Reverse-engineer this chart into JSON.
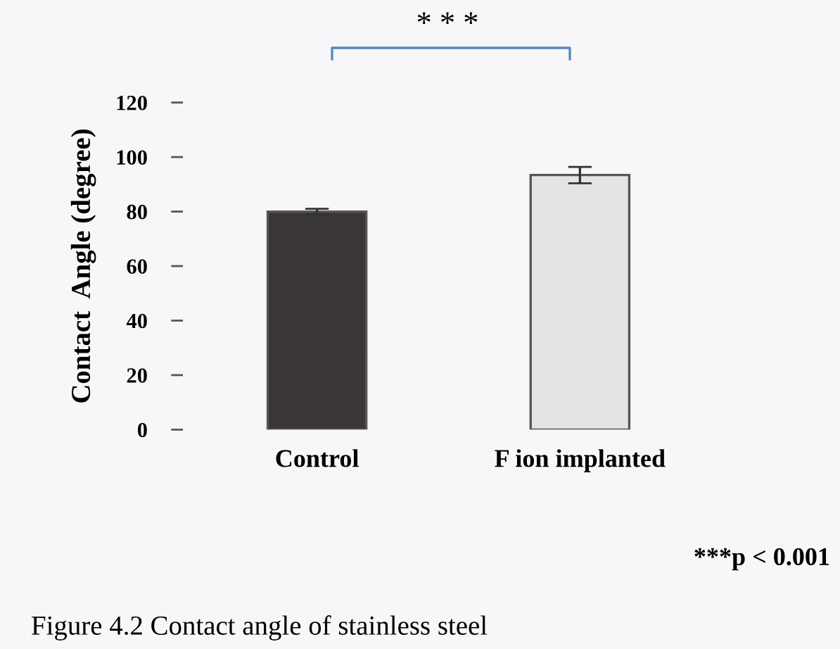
{
  "chart_data": {
    "type": "bar",
    "ylabel": "Contact  Angle (degree)",
    "categories": [
      "Control",
      "F ion implanted"
    ],
    "values": [
      80,
      93.4
    ],
    "errors": [
      1,
      3
    ],
    "colors": [
      "#3b3636",
      "#e4e4e6"
    ],
    "ylim": [
      0,
      120
    ],
    "yticks": [
      0,
      20,
      40,
      60,
      80,
      100,
      120
    ],
    "grid": false,
    "annotations": [
      "* * *",
      "***p < 0.001",
      "Figure 4.2 Contact angle of stainless steel"
    ]
  }
}
